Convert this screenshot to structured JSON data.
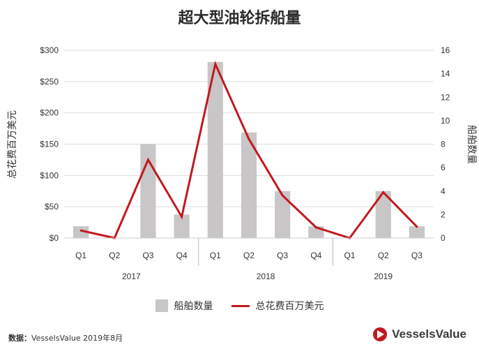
{
  "chart_data": {
    "type": "bar",
    "title": "超大型油轮拆船量",
    "ylabel_left": "总花费百万美元",
    "ylabel_right": "船舶数量",
    "categories": [
      "Q1",
      "Q2",
      "Q3",
      "Q4",
      "Q1",
      "Q2",
      "Q3",
      "Q4",
      "Q1",
      "Q2",
      "Q3"
    ],
    "years": [
      {
        "label": "2017",
        "quarters": [
          "Q1",
          "Q2",
          "Q3",
          "Q4"
        ]
      },
      {
        "label": "2018",
        "quarters": [
          "Q1",
          "Q2",
          "Q3",
          "Q4"
        ]
      },
      {
        "label": "2019",
        "quarters": [
          "Q1",
          "Q2",
          "Q3"
        ]
      }
    ],
    "left_axis": {
      "min": 0,
      "max": 300,
      "ticks": [
        "$0",
        "$50",
        "$100",
        "$150",
        "$200",
        "$250",
        "$300"
      ]
    },
    "right_axis": {
      "min": 0,
      "max": 16,
      "ticks": [
        "0",
        "2",
        "4",
        "6",
        "8",
        "10",
        "12",
        "14",
        "16"
      ]
    },
    "series": [
      {
        "name": "船舶数量",
        "type": "bar",
        "axis": "right",
        "color": "#c8c6c6",
        "values": [
          1,
          0,
          8,
          2,
          15,
          9,
          4,
          1,
          0,
          4,
          1
        ]
      },
      {
        "name": "总花费百万美元",
        "type": "line",
        "axis": "left",
        "color": "#c2181f",
        "values": [
          12,
          0,
          125,
          34,
          278,
          158,
          68,
          17,
          0,
          73,
          18
        ]
      }
    ],
    "legend_position": "bottom",
    "grid": true
  },
  "source": {
    "label": "数据：",
    "text": "VesselsValue 2019年8月"
  },
  "brand": {
    "name": "VesselsValue",
    "color": "#c2181f"
  }
}
